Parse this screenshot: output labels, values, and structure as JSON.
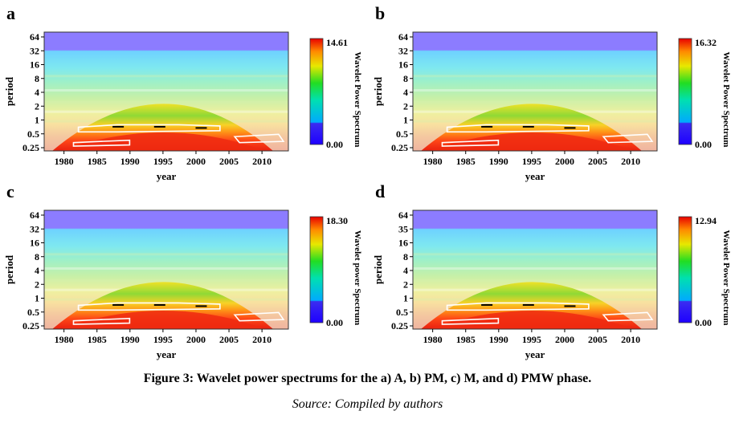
{
  "caption": "Figure 3: Wavelet power spectrums for the a) A, b) PM, c) M, and d) PMW phase.",
  "source": "Source: Compiled by authors",
  "chart_data": [
    {
      "type": "heatmap",
      "panel": "a",
      "xlabel": "year",
      "ylabel": "period",
      "x_ticks": [
        "1980",
        "1985",
        "1990",
        "1995",
        "2000",
        "2005",
        "2010"
      ],
      "y_ticks": [
        "64",
        "32",
        "16",
        "8",
        "4",
        "2",
        "1",
        "0.5",
        "0.25"
      ],
      "xlim": [
        1977,
        2014
      ],
      "colorbar": {
        "label": "Wavelet Power Spectrum",
        "max": "14.61",
        "min": "0.00"
      }
    },
    {
      "type": "heatmap",
      "panel": "b",
      "xlabel": "year",
      "ylabel": "period",
      "x_ticks": [
        "1980",
        "1985",
        "1990",
        "1995",
        "2000",
        "2005",
        "2010"
      ],
      "y_ticks": [
        "64",
        "32",
        "16",
        "8",
        "4",
        "2",
        "1",
        "0.5",
        "0.25"
      ],
      "xlim": [
        1977,
        2014
      ],
      "colorbar": {
        "label": "Wavelet Power Spectrum",
        "max": "16.32",
        "min": "0.00"
      }
    },
    {
      "type": "heatmap",
      "panel": "c",
      "xlabel": "year",
      "ylabel": "period",
      "x_ticks": [
        "1980",
        "1985",
        "1990",
        "1995",
        "2000",
        "2005",
        "2010"
      ],
      "y_ticks": [
        "64",
        "32",
        "16",
        "8",
        "4",
        "2",
        "1",
        "0.5",
        "0.25"
      ],
      "xlim": [
        1977,
        2014
      ],
      "colorbar": {
        "label": "Wavelet power Spectrum",
        "max": "18.30",
        "min": "0.00"
      }
    },
    {
      "type": "heatmap",
      "panel": "d",
      "xlabel": "year",
      "ylabel": "period",
      "x_ticks": [
        "1980",
        "1985",
        "1990",
        "1995",
        "2000",
        "2005",
        "2010"
      ],
      "y_ticks": [
        "64",
        "35",
        "16",
        "8",
        "4",
        "2",
        "1",
        "0.5",
        "0.25"
      ],
      "xlim": [
        1977,
        2014
      ],
      "colorbar": {
        "label": "Wavelet Power Spectrum",
        "max": "12.94",
        "min": "0.00"
      }
    }
  ]
}
